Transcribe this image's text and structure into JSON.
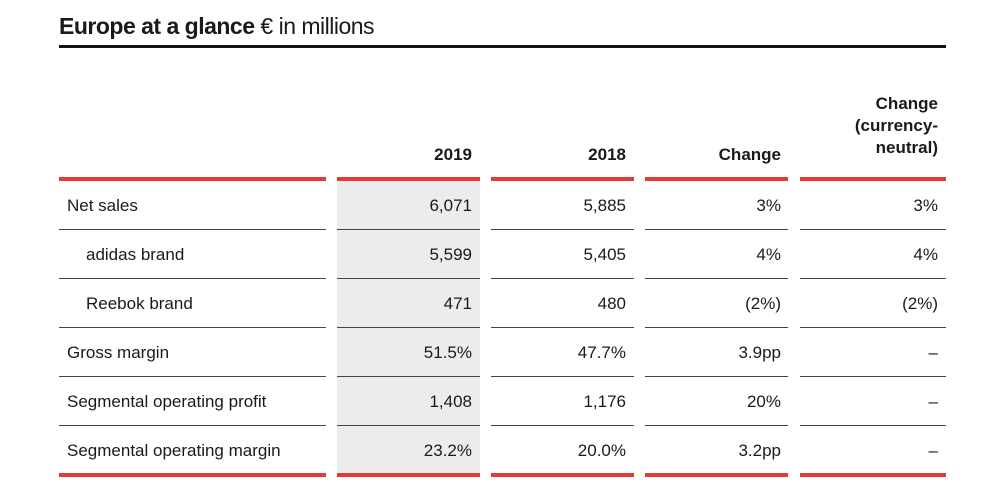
{
  "title": {
    "bold": "Europe at a glance",
    "light": "€ in millions"
  },
  "columns": {
    "c2019": "2019",
    "c2018": "2018",
    "change": "Change",
    "change_cn": [
      "Change",
      "(currency-",
      "neutral)"
    ]
  },
  "rows": [
    {
      "label": "Net sales",
      "v2019": "6,071",
      "v2018": "5,885",
      "change": "3%",
      "change_cn": "3%"
    },
    {
      "label": "adidas brand",
      "v2019": "5,599",
      "v2018": "5,405",
      "change": "4%",
      "change_cn": "4%"
    },
    {
      "label": "Reebok brand",
      "v2019": "471",
      "v2018": "480",
      "change": "(2%)",
      "change_cn": "(2%)"
    },
    {
      "label": "Gross margin",
      "v2019": "51.5%",
      "v2018": "47.7%",
      "change": "3.9pp",
      "change_cn": "–"
    },
    {
      "label": "Segmental operating profit",
      "v2019": "1,408",
      "v2018": "1,176",
      "change": "20%",
      "change_cn": "–"
    },
    {
      "label": "Segmental operating margin",
      "v2019": "23.2%",
      "v2018": "20.0%",
      "change": "3.2pp",
      "change_cn": "–"
    }
  ],
  "colors": {
    "accent": "#e23c33",
    "shade": "#ececec"
  }
}
